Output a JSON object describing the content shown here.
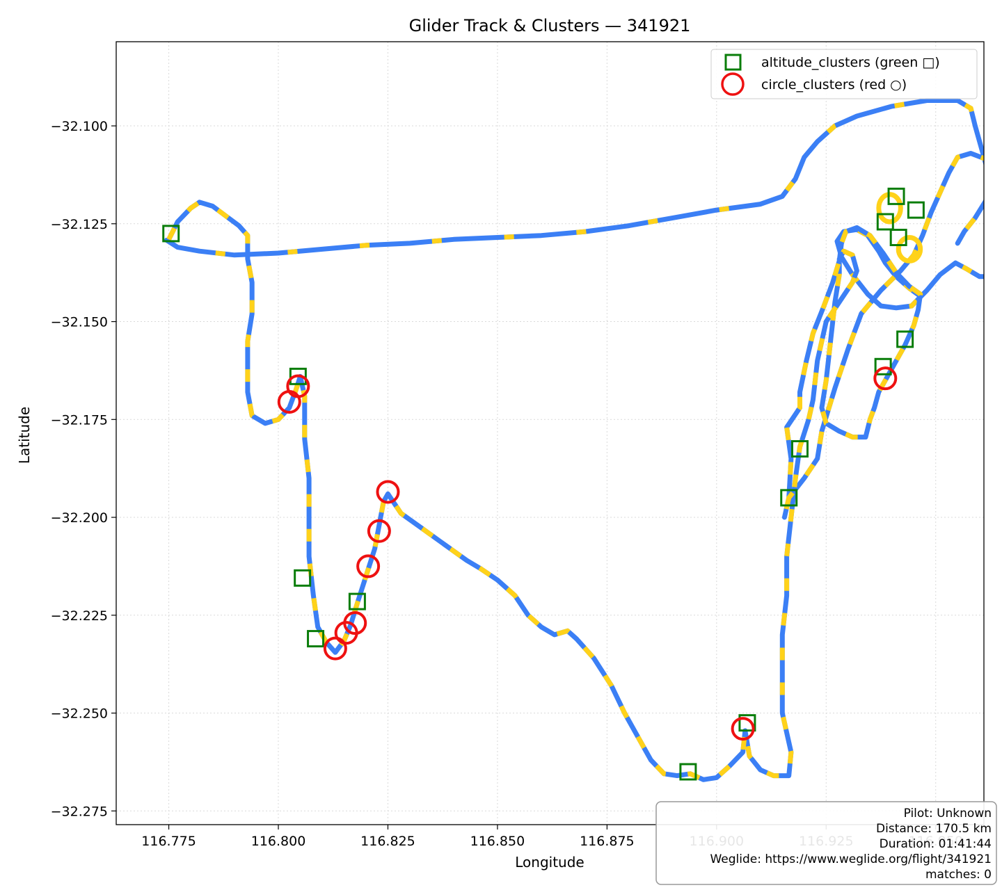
{
  "chart_data": {
    "type": "scatter",
    "title": "Glider Track & Clusters — 341921",
    "xlabel": "Longitude",
    "ylabel": "Latitude",
    "xlim": [
      116.763,
      116.961
    ],
    "ylim": [
      -32.2785,
      -32.0785
    ],
    "xticks": [
      116.775,
      116.8,
      116.825,
      116.85,
      116.875,
      116.9,
      116.925,
      116.95
    ],
    "xtick_labels": [
      "116.775",
      "116.800",
      "116.825",
      "116.850",
      "116.875",
      "116.900",
      "116.925",
      "116.950"
    ],
    "yticks": [
      -32.1,
      -32.125,
      -32.15,
      -32.175,
      -32.2,
      -32.225,
      -32.25,
      -32.275
    ],
    "ytick_labels": [
      "−32.100",
      "−32.125",
      "−32.150",
      "−32.175",
      "−32.200",
      "−32.225",
      "−32.250",
      "−32.275"
    ],
    "grid": true,
    "legend_position": "top-right",
    "colors": {
      "track_climb": "#3b7ff5",
      "track_sink": "#ffd21a",
      "altitude": "#0a7d0a",
      "circle": "#ee1111"
    },
    "track": [
      [
        116.775,
        -32.129
      ],
      [
        116.777,
        -32.1245
      ],
      [
        116.78,
        -32.121
      ],
      [
        116.782,
        -32.1195
      ],
      [
        116.785,
        -32.1205
      ],
      [
        116.788,
        -32.123
      ],
      [
        116.791,
        -32.1255
      ],
      [
        116.793,
        -32.128
      ],
      [
        116.793,
        -32.134
      ],
      [
        116.794,
        -32.14
      ],
      [
        116.794,
        -32.148
      ],
      [
        116.793,
        -32.155
      ],
      [
        116.793,
        -32.162
      ],
      [
        116.793,
        -32.168
      ],
      [
        116.794,
        -32.174
      ],
      [
        116.797,
        -32.176
      ],
      [
        116.8,
        -32.175
      ],
      [
        116.8025,
        -32.172
      ],
      [
        116.804,
        -32.1675
      ],
      [
        116.805,
        -32.164
      ],
      [
        116.806,
        -32.169
      ],
      [
        116.806,
        -32.18
      ],
      [
        116.807,
        -32.19
      ],
      [
        116.807,
        -32.2
      ],
      [
        116.807,
        -32.21
      ],
      [
        116.808,
        -32.22
      ],
      [
        116.809,
        -32.228
      ],
      [
        116.811,
        -32.232
      ],
      [
        116.813,
        -32.2345
      ],
      [
        116.815,
        -32.2315
      ],
      [
        116.8165,
        -32.2275
      ],
      [
        116.818,
        -32.222
      ],
      [
        116.82,
        -32.215
      ],
      [
        116.822,
        -32.208
      ],
      [
        116.823,
        -32.202
      ],
      [
        116.824,
        -32.196
      ],
      [
        116.825,
        -32.194
      ],
      [
        116.828,
        -32.199
      ],
      [
        116.833,
        -32.203
      ],
      [
        116.838,
        -32.207
      ],
      [
        116.843,
        -32.211
      ],
      [
        116.846,
        -32.213
      ],
      [
        116.85,
        -32.216
      ],
      [
        116.854,
        -32.22
      ],
      [
        116.857,
        -32.225
      ],
      [
        116.86,
        -32.228
      ],
      [
        116.863,
        -32.23
      ],
      [
        116.866,
        -32.229
      ],
      [
        116.868,
        -32.231
      ],
      [
        116.872,
        -32.236
      ],
      [
        116.876,
        -32.243
      ],
      [
        116.879,
        -32.25
      ],
      [
        116.882,
        -32.256
      ],
      [
        116.885,
        -32.262
      ],
      [
        116.888,
        -32.2655
      ],
      [
        116.891,
        -32.266
      ],
      [
        116.894,
        -32.2655
      ],
      [
        116.897,
        -32.267
      ],
      [
        116.9,
        -32.2665
      ],
      [
        116.903,
        -32.2635
      ],
      [
        116.906,
        -32.26
      ],
      [
        116.9065,
        -32.2545
      ],
      [
        116.9075,
        -32.261
      ],
      [
        116.91,
        -32.2645
      ],
      [
        116.913,
        -32.266
      ],
      [
        116.9165,
        -32.266
      ],
      [
        116.917,
        -32.26
      ],
      [
        116.915,
        -32.25
      ],
      [
        116.915,
        -32.24
      ],
      [
        116.915,
        -32.23
      ],
      [
        116.916,
        -32.22
      ],
      [
        116.916,
        -32.21
      ],
      [
        116.917,
        -32.2
      ],
      [
        116.918,
        -32.19
      ],
      [
        116.919,
        -32.182
      ],
      [
        116.921,
        -32.175
      ],
      [
        116.922,
        -32.17
      ],
      [
        116.923,
        -32.16
      ],
      [
        116.925,
        -32.15
      ],
      [
        116.928,
        -32.145
      ],
      [
        116.931,
        -32.14
      ],
      [
        116.932,
        -32.137
      ],
      [
        116.931,
        -32.133
      ],
      [
        116.929,
        -32.132
      ],
      [
        116.928,
        -32.134
      ],
      [
        116.928,
        -32.138
      ],
      [
        116.927,
        -32.145
      ],
      [
        116.926,
        -32.155
      ],
      [
        116.925,
        -32.165
      ],
      [
        116.924,
        -32.172
      ],
      [
        116.925,
        -32.176
      ],
      [
        116.928,
        -32.178
      ],
      [
        116.931,
        -32.1795
      ],
      [
        116.934,
        -32.1795
      ],
      [
        116.935,
        -32.175
      ],
      [
        116.936,
        -32.172
      ],
      [
        116.937,
        -32.168
      ],
      [
        116.939,
        -32.164
      ],
      [
        116.941,
        -32.16
      ],
      [
        116.943,
        -32.156
      ],
      [
        116.945,
        -32.151
      ],
      [
        116.946,
        -32.147
      ],
      [
        116.9465,
        -32.143
      ],
      [
        116.944,
        -32.141
      ],
      [
        116.941,
        -32.1375
      ],
      [
        116.938,
        -32.1325
      ],
      [
        116.935,
        -32.128
      ],
      [
        116.932,
        -32.126
      ],
      [
        116.9295,
        -32.127
      ],
      [
        116.9285,
        -32.13
      ],
      [
        116.928,
        -32.1345
      ],
      [
        116.9265,
        -32.14
      ],
      [
        116.9245,
        -32.146
      ],
      [
        116.922,
        -32.153
      ],
      [
        116.9205,
        -32.16
      ],
      [
        116.919,
        -32.168
      ],
      [
        116.919,
        -32.172
      ],
      [
        116.916,
        -32.177
      ],
      [
        116.917,
        -32.185
      ],
      [
        116.9165,
        -32.195
      ],
      [
        116.9155,
        -32.2
      ],
      [
        116.9165,
        -32.195
      ],
      [
        116.92,
        -32.19
      ],
      [
        116.923,
        -32.185
      ],
      [
        116.924,
        -32.178
      ],
      [
        116.927,
        -32.167
      ],
      [
        116.93,
        -32.157
      ],
      [
        116.933,
        -32.148
      ],
      [
        116.9375,
        -32.142
      ],
      [
        116.942,
        -32.137
      ],
      [
        116.945,
        -32.133
      ],
      [
        116.947,
        -32.128
      ],
      [
        116.949,
        -32.122
      ],
      [
        116.951,
        -32.117
      ],
      [
        116.953,
        -32.112
      ],
      [
        116.955,
        -32.108
      ],
      [
        116.958,
        -32.107
      ],
      [
        116.9615,
        -32.1085
      ],
      [
        116.9625,
        -32.113
      ],
      [
        116.9615,
        -32.119
      ],
      [
        116.959,
        -32.1235
      ],
      [
        116.9565,
        -32.127
      ],
      [
        116.955,
        -32.13
      ]
    ],
    "blue_route": [
      [
        116.7745,
        -32.1292
      ],
      [
        116.777,
        -32.131
      ],
      [
        116.782,
        -32.132
      ],
      [
        116.79,
        -32.133
      ],
      [
        116.8,
        -32.1325
      ],
      [
        116.81,
        -32.1315
      ],
      [
        116.82,
        -32.1305
      ],
      [
        116.83,
        -32.13
      ],
      [
        116.84,
        -32.129
      ],
      [
        116.85,
        -32.1285
      ],
      [
        116.86,
        -32.128
      ],
      [
        116.87,
        -32.127
      ],
      [
        116.88,
        -32.1255
      ],
      [
        116.89,
        -32.1235
      ],
      [
        116.9,
        -32.1215
      ],
      [
        116.91,
        -32.12
      ],
      [
        116.915,
        -32.118
      ],
      [
        116.918,
        -32.1135
      ],
      [
        116.92,
        -32.108
      ],
      [
        116.923,
        -32.104
      ],
      [
        116.927,
        -32.1
      ],
      [
        116.932,
        -32.0975
      ],
      [
        116.94,
        -32.095
      ],
      [
        116.948,
        -32.0935
      ],
      [
        116.955,
        -32.0935
      ],
      [
        116.958,
        -32.0955
      ],
      [
        116.959,
        -32.1
      ],
      [
        116.9605,
        -32.106
      ],
      [
        116.962,
        -32.112
      ],
      [
        116.9645,
        -32.117
      ],
      [
        116.9665,
        -32.122
      ],
      [
        116.968,
        -32.128
      ],
      [
        116.968,
        -32.134
      ],
      [
        116.966,
        -32.137
      ],
      [
        116.963,
        -32.1385
      ],
      [
        116.96,
        -32.1385
      ],
      [
        116.957,
        -32.1365
      ],
      [
        116.9545,
        -32.135
      ],
      [
        116.951,
        -32.138
      ],
      [
        116.948,
        -32.142
      ],
      [
        116.9445,
        -32.146
      ],
      [
        116.941,
        -32.1465
      ],
      [
        116.9375,
        -32.146
      ],
      [
        116.9345,
        -32.143
      ],
      [
        116.931,
        -32.138
      ],
      [
        116.9285,
        -32.1335
      ],
      [
        116.9275,
        -32.1295
      ],
      [
        116.929,
        -32.127
      ],
      [
        116.932,
        -32.1265
      ],
      [
        116.9345,
        -32.128
      ],
      [
        116.937,
        -32.132
      ],
      [
        116.9385,
        -32.135
      ],
      [
        116.941,
        -32.1385
      ],
      [
        116.944,
        -32.1415
      ],
      [
        116.9465,
        -32.1435
      ]
    ],
    "altitude_clusters": [
      [
        116.7755,
        -32.1275
      ],
      [
        116.8045,
        -32.164
      ],
      [
        116.8055,
        -32.2155
      ],
      [
        116.8085,
        -32.231
      ],
      [
        116.818,
        -32.2215
      ],
      [
        116.8935,
        -32.265
      ],
      [
        116.907,
        -32.2525
      ],
      [
        116.919,
        -32.1825
      ],
      [
        116.9165,
        -32.195
      ],
      [
        116.938,
        -32.1615
      ],
      [
        116.943,
        -32.1545
      ],
      [
        116.941,
        -32.118
      ],
      [
        116.9455,
        -32.1215
      ],
      [
        116.9385,
        -32.1245
      ],
      [
        116.9415,
        -32.1285
      ],
      [
        116.9635,
        -32.1125
      ]
    ],
    "circle_clusters": [
      [
        116.8045,
        -32.1665
      ],
      [
        116.8025,
        -32.1705
      ],
      [
        116.813,
        -32.2335
      ],
      [
        116.8155,
        -32.2295
      ],
      [
        116.8175,
        -32.227
      ],
      [
        116.8205,
        -32.2125
      ],
      [
        116.823,
        -32.2035
      ],
      [
        116.825,
        -32.1935
      ],
      [
        116.906,
        -32.254
      ],
      [
        116.9385,
        -32.1645
      ]
    ],
    "yellow_loops": [
      {
        "cx": 116.9395,
        "cy": -32.121,
        "rx": 0.0025,
        "ry": 0.0035
      },
      {
        "cx": 116.944,
        "cy": -32.1315,
        "rx": 0.0025,
        "ry": 0.003
      }
    ],
    "legend": {
      "altitude_label": "altitude_clusters (green □)",
      "circle_label": "circle_clusters (red ○)"
    }
  },
  "info_box": {
    "pilot": "Pilot: Unknown",
    "distance": "Distance: 170.5 km",
    "duration": "Duration: 01:41:44",
    "weglide": "Weglide: https://www.weglide.org/flight/341921",
    "matches": "matches: 0"
  }
}
